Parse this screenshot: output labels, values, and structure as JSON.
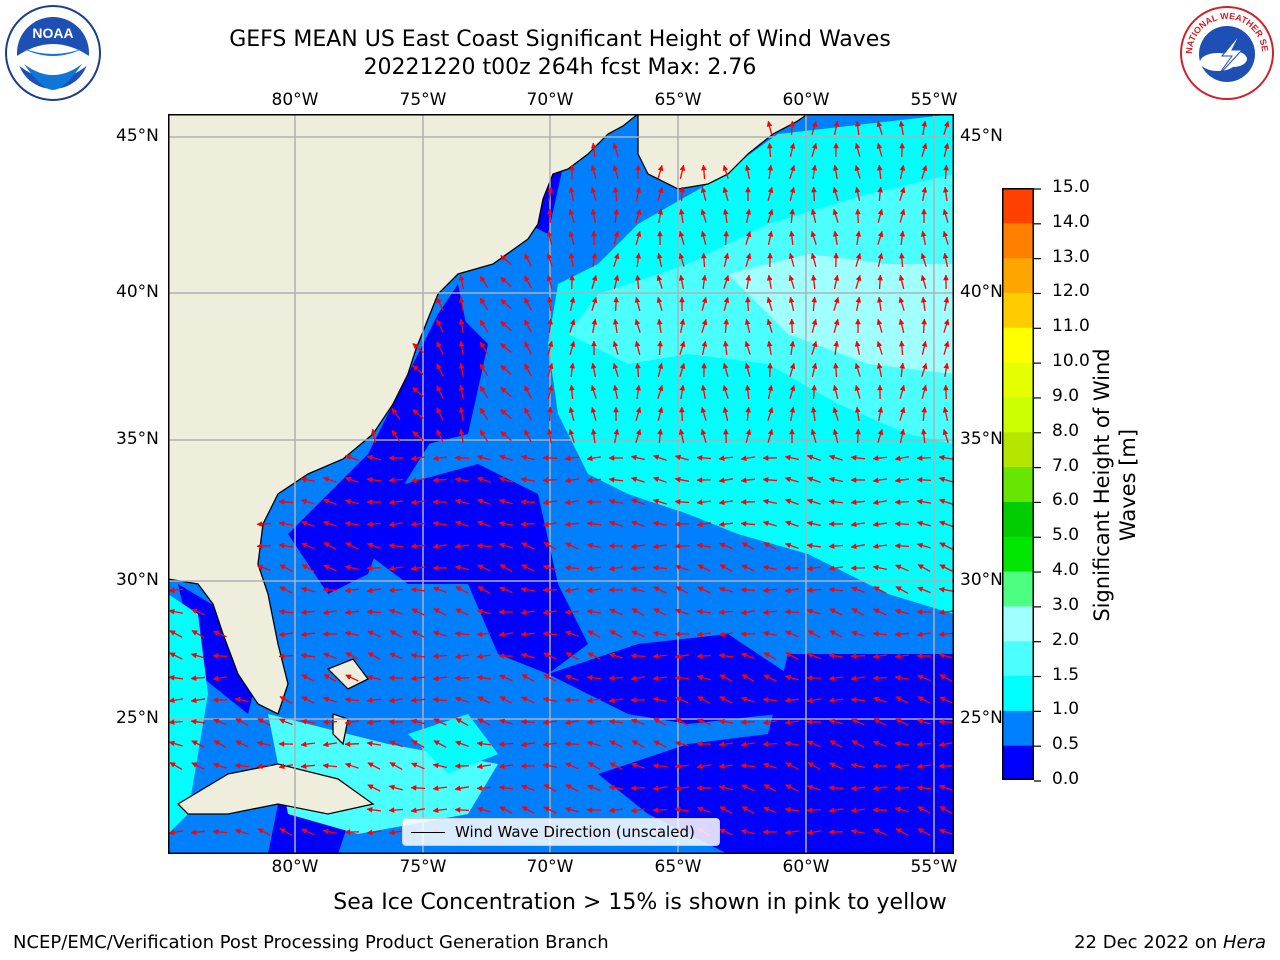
{
  "title": {
    "line1": "GEFS MEAN US East Coast Significant Height of Wind Waves",
    "line2": "20221220 t00z 264h fcst   Max: 2.76"
  },
  "logos": {
    "noaa_text": "NOAA",
    "nws_text": "NATIONAL WEATHER SERVICE"
  },
  "map": {
    "lon_labels": [
      "80°W",
      "75°W",
      "70°W",
      "65°W",
      "60°W",
      "55°W"
    ],
    "lat_labels": [
      "45°N",
      "40°N",
      "35°N",
      "30°N",
      "25°N"
    ],
    "lon_range": [
      -85,
      -54.2
    ],
    "lat_range": [
      20.3,
      46
    ],
    "legend_text": "Wind Wave Direction (unscaled)",
    "land_color": "#efeedc",
    "arrow_color": "#ff0000",
    "grid": true
  },
  "colorbar": {
    "ticks": [
      "15.0",
      "14.0",
      "13.0",
      "12.0",
      "11.0",
      "10.0",
      "9.0",
      "8.0",
      "7.0",
      "6.0",
      "5.0",
      "4.0",
      "3.0",
      "2.0",
      "1.5",
      "1.0",
      "0.5",
      "0.0"
    ],
    "colors_bottom_to_top": [
      "#0000ff",
      "#0080ff",
      "#00ffff",
      "#4cffff",
      "#a0ffff",
      "#4cff80",
      "#00e600",
      "#00cc00",
      "#66e600",
      "#b4e600",
      "#ccff00",
      "#e6ff00",
      "#ffff00",
      "#ffcc00",
      "#ffa500",
      "#ff8000",
      "#ff4000",
      "#ff0000"
    ],
    "label": "Significant Height of Wind Waves [m]"
  },
  "subtitle": "Sea Ice Concentration > 15% is shown in pink to yellow",
  "footer": {
    "left": "NCEP/EMC/Verification Post Processing Product Generation Branch",
    "right_prefix": "22 Dec 2022 on ",
    "right_host": "Hera"
  }
}
